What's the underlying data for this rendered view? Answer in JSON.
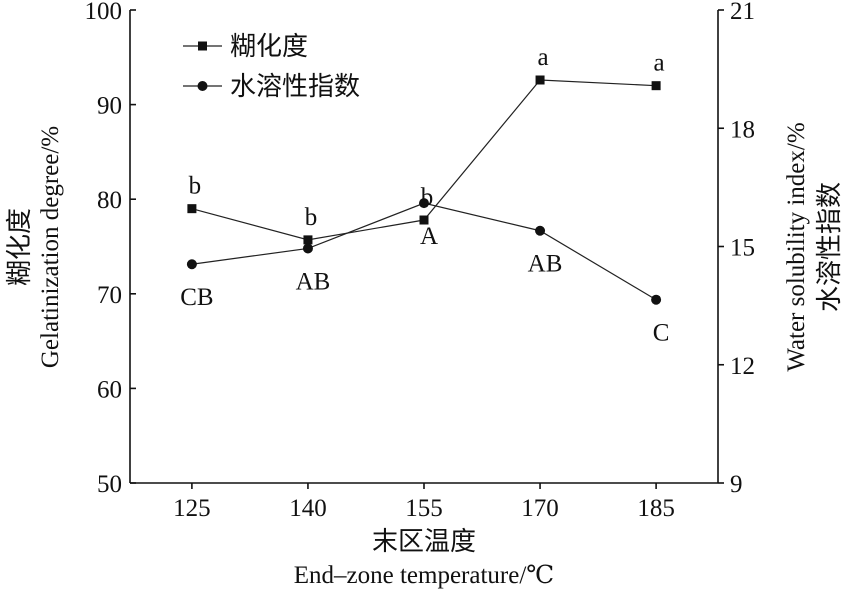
{
  "chart_data": {
    "type": "line",
    "x": [
      125,
      140,
      155,
      170,
      185
    ],
    "xlim": [
      117,
      193
    ],
    "x_ticks": [
      "125",
      "140",
      "155",
      "170",
      "185"
    ],
    "xlabel_cn": "末区温度",
    "xlabel_en": "End–zone temperature/℃",
    "ylabel_left_cn": "糊化度",
    "ylabel_left_en": "Gelatinization degree/%",
    "ylabel_right_en": "Water solubility index/%",
    "ylabel_right_cn": "水溶性指数",
    "ylim_left": [
      50,
      100
    ],
    "ylim_right": [
      9,
      21
    ],
    "y_ticks_left": [
      "50",
      "60",
      "70",
      "80",
      "90",
      "100"
    ],
    "y_ticks_right": [
      "9",
      "12",
      "15",
      "18",
      "21"
    ],
    "legend_position": "top-left",
    "series": [
      {
        "name": "糊化度",
        "axis": "left",
        "marker": "square",
        "values": [
          79.0,
          75.7,
          77.8,
          92.6,
          92.0
        ],
        "labels": [
          "b",
          "b",
          "b",
          "a",
          "a"
        ],
        "label_pos": "above"
      },
      {
        "name": "水溶性指数",
        "axis": "right",
        "marker": "circle",
        "values": [
          14.55,
          14.95,
          16.1,
          15.4,
          13.65
        ],
        "labels": [
          "CB",
          "AB",
          "A",
          "AB",
          "C"
        ],
        "label_pos": "below"
      }
    ]
  }
}
